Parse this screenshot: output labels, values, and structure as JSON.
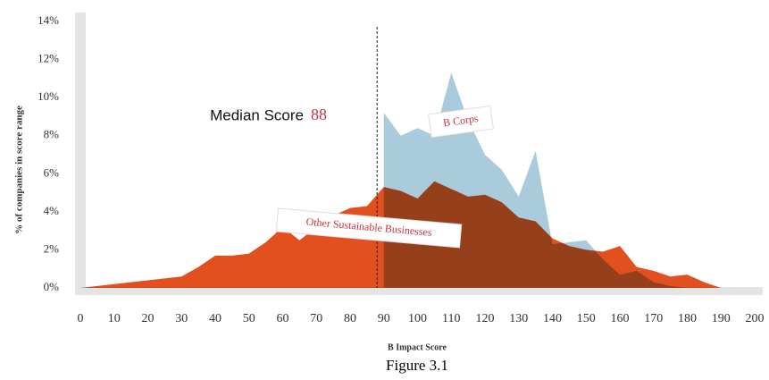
{
  "chart_data": {
    "type": "area",
    "caption": "Figure 3.1",
    "xlabel": "B Impact Score",
    "ylabel": "% of companies in score range",
    "x": [
      0,
      5,
      10,
      15,
      20,
      25,
      30,
      35,
      40,
      45,
      50,
      55,
      60,
      65,
      70,
      75,
      80,
      85,
      90,
      95,
      100,
      105,
      110,
      115,
      120,
      125,
      130,
      135,
      140,
      145,
      150,
      155,
      160,
      165,
      170,
      175,
      180,
      185,
      190
    ],
    "series": [
      {
        "name": "B Corps",
        "color": "#a9cbdc",
        "values": [
          null,
          null,
          null,
          null,
          null,
          null,
          null,
          null,
          null,
          null,
          null,
          null,
          null,
          null,
          null,
          null,
          null,
          null,
          9.2,
          8.0,
          8.4,
          8.0,
          11.3,
          8.8,
          7.0,
          6.2,
          4.8,
          7.2,
          2.3,
          2.4,
          2.5,
          1.5,
          0.7,
          0.9,
          0.3,
          0.1,
          0,
          null,
          null
        ]
      },
      {
        "name": "Other Sustainable Businesses",
        "color": "#e2501f",
        "values": [
          0,
          0.1,
          0.2,
          0.3,
          0.4,
          0.5,
          0.6,
          1.1,
          1.7,
          1.7,
          1.8,
          2.4,
          3.2,
          2.5,
          3.2,
          3.8,
          4.2,
          4.3,
          5.3,
          5.1,
          4.7,
          5.6,
          5.2,
          4.8,
          4.9,
          4.5,
          3.7,
          3.5,
          2.6,
          2.2,
          2.0,
          1.9,
          2.2,
          1.1,
          0.9,
          0.6,
          0.7,
          0.3,
          0
        ]
      }
    ],
    "median": {
      "label": "Median Score",
      "value": 88
    },
    "xlim": [
      0,
      200
    ],
    "ylim": [
      0,
      14
    ],
    "xticks": [
      0,
      10,
      20,
      30,
      40,
      50,
      60,
      70,
      80,
      90,
      100,
      110,
      120,
      130,
      140,
      150,
      160,
      170,
      180,
      190,
      200
    ],
    "yticks": [
      {
        "value": 0,
        "label": "0%"
      },
      {
        "value": 2,
        "label": "2%"
      },
      {
        "value": 4,
        "label": "4%"
      },
      {
        "value": 6,
        "label": "6%"
      },
      {
        "value": 8,
        "label": "8%"
      },
      {
        "value": 10,
        "label": "10%"
      },
      {
        "value": 12,
        "label": "12%"
      },
      {
        "value": 14,
        "label": "14%"
      }
    ]
  }
}
